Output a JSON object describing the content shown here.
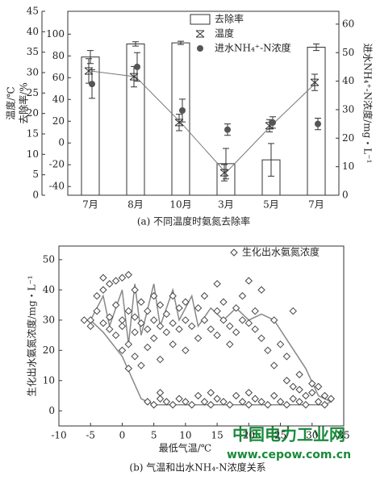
{
  "chart_data": [
    {
      "type": "bar",
      "categories": [
        "7月",
        "8月",
        "10月",
        "3月",
        "5月",
        "7月"
      ],
      "ylabel": "去除率/%",
      "ylim": [
        -48,
        121
      ],
      "yticks": [
        -40,
        -20,
        0,
        20,
        40,
        60,
        80,
        100
      ],
      "temp_label": "温度/℃",
      "temp_lim": [
        0,
        45
      ],
      "temp_ticks": [
        0,
        5,
        10,
        15,
        20,
        25,
        30,
        35,
        40,
        45
      ],
      "y2label": "进水NH₄⁺-N浓度/mg・L⁻¹",
      "y2lim": [
        0,
        64.5
      ],
      "y2ticks": [
        0,
        10,
        20,
        30,
        40,
        50,
        60
      ],
      "caption": "(a) 不同温度时氨氮去除率",
      "series": [
        {
          "name": "去除率",
          "type": "bar",
          "color": "#ffffff",
          "values": [
            79,
            91,
            92,
            -19,
            -15.5,
            88
          ],
          "errors": [
            6,
            2,
            1.5,
            14,
            15,
            3
          ]
        },
        {
          "name": "温度",
          "type": "line",
          "axis": "temp",
          "color": "#777777",
          "values": [
            30.4,
            29,
            17.8,
            5.5,
            17,
            27.6
          ],
          "errors": [
            3,
            2.5,
            2,
            2,
            1.5,
            2
          ]
        },
        {
          "name": "进水NH₄⁺-N浓度",
          "type": "scatter",
          "axis": "y2",
          "color": "#555555",
          "values": [
            39,
            45,
            29.7,
            23,
            25.5,
            25
          ],
          "errors": [
            5,
            5,
            4,
            2,
            2,
            2
          ]
        }
      ]
    },
    {
      "type": "scatter",
      "xlabel": "最低气温/℃",
      "ylabel": "生化出水氨氮浓度/mg・L⁻¹",
      "xlim": [
        -10,
        35
      ],
      "xticks": [
        -10,
        -5,
        0,
        5,
        10,
        15,
        20,
        25,
        30,
        35
      ],
      "ylim": [
        -5,
        54.5
      ],
      "yticks": [
        0,
        10,
        20,
        30,
        40,
        50
      ],
      "caption": "(b) 气温和出水NH₄-N浓度关系",
      "series": [
        {
          "name": "生化出水氨氮浓度",
          "color": "#444444",
          "x": [
            -5,
            -5,
            -4,
            -4,
            -3,
            -3,
            -3,
            -2,
            -2,
            -2,
            -1,
            -1,
            -1,
            0,
            0,
            0,
            0,
            1,
            1,
            1,
            1,
            2,
            2,
            2,
            2,
            3,
            3,
            3,
            4,
            4,
            4,
            5,
            5,
            5,
            6,
            6,
            6,
            7,
            7,
            8,
            8,
            8,
            9,
            9,
            10,
            10,
            10,
            11,
            12,
            12,
            13,
            13,
            14,
            15,
            15,
            15,
            16,
            16,
            17,
            17,
            18,
            18,
            19,
            19,
            20,
            20,
            21,
            21,
            22,
            22,
            23,
            24,
            24,
            25,
            26,
            26,
            27,
            27,
            28,
            29,
            30,
            31,
            32,
            4,
            5,
            6,
            7,
            8,
            9,
            10,
            11,
            12,
            13,
            14,
            15,
            16,
            17,
            18,
            19,
            20,
            21,
            22,
            23,
            24,
            25,
            26,
            27,
            28,
            29,
            30,
            31,
            32,
            33,
            6,
            14,
            20,
            28,
            -6
          ],
          "values": [
            30,
            28,
            33,
            38,
            40,
            29,
            44,
            42,
            31,
            27,
            43,
            25,
            35,
            44,
            30,
            20,
            28,
            45,
            33,
            22,
            14,
            40,
            26,
            18,
            31,
            36,
            29,
            15,
            33,
            27,
            21,
            38,
            30,
            24,
            35,
            28,
            17,
            32,
            26,
            38,
            29,
            22,
            34,
            27,
            36,
            30,
            20,
            28,
            34,
            24,
            30,
            38,
            27,
            42,
            33,
            25,
            30,
            36,
            28,
            22,
            34,
            26,
            30,
            38,
            29,
            43,
            27,
            33,
            24,
            40,
            20,
            30,
            15,
            22,
            18,
            10,
            33,
            8,
            12,
            5,
            9,
            8,
            5,
            3,
            2,
            4,
            3,
            2,
            4,
            3,
            2,
            5,
            3,
            2,
            4,
            3,
            2,
            5,
            3,
            2,
            4,
            3,
            2,
            5,
            3,
            2,
            4,
            3,
            2,
            6,
            3,
            2,
            4,
            6,
            6,
            6,
            7,
            30
          ]
        }
      ],
      "fit": {
        "color": "#888888",
        "x": [
          -5,
          -3,
          -2,
          0,
          1,
          2,
          3,
          5,
          6,
          8,
          9,
          11,
          12,
          14,
          16,
          18,
          20,
          22,
          24,
          29,
          31,
          33,
          32,
          5,
          3,
          0,
          -3,
          -5
        ],
        "y": [
          30,
          38,
          28,
          40,
          22,
          42,
          25,
          42,
          28,
          40,
          30,
          38,
          28,
          34,
          30,
          34,
          30,
          32,
          30,
          14,
          5,
          3,
          2,
          2,
          4,
          18,
          26,
          30
        ]
      }
    },
    {
      "watermark": [
        "中国电力工业网",
        "www.cepow.com.cn"
      ]
    }
  ]
}
